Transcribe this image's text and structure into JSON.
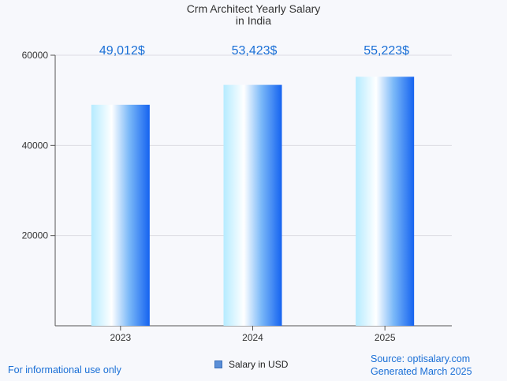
{
  "chart_data": {
    "type": "bar",
    "title": "Crm Architect Yearly Salary",
    "subtitle": "in India",
    "categories": [
      "2023",
      "2024",
      "2025"
    ],
    "series": [
      {
        "name": "Salary in USD",
        "values": [
          49012,
          53423,
          55223
        ]
      }
    ],
    "data_labels": [
      "49,012$",
      "53,423$",
      "55,223$"
    ],
    "y_ticks": [
      20000,
      40000,
      60000
    ],
    "ylim": [
      0,
      60000
    ],
    "xlabel": "",
    "ylabel": "",
    "grid": true,
    "legend_position": "bottom-center"
  },
  "footer": {
    "disclaimer": "For informational use only",
    "source": "Source: optisalary.com",
    "generated": "Generated March 2025"
  },
  "colors": {
    "bar_light": "#bfefff",
    "bar_white": "#ffffff",
    "bar_dark": "#1a6af0",
    "label": "#1a6fd6"
  }
}
